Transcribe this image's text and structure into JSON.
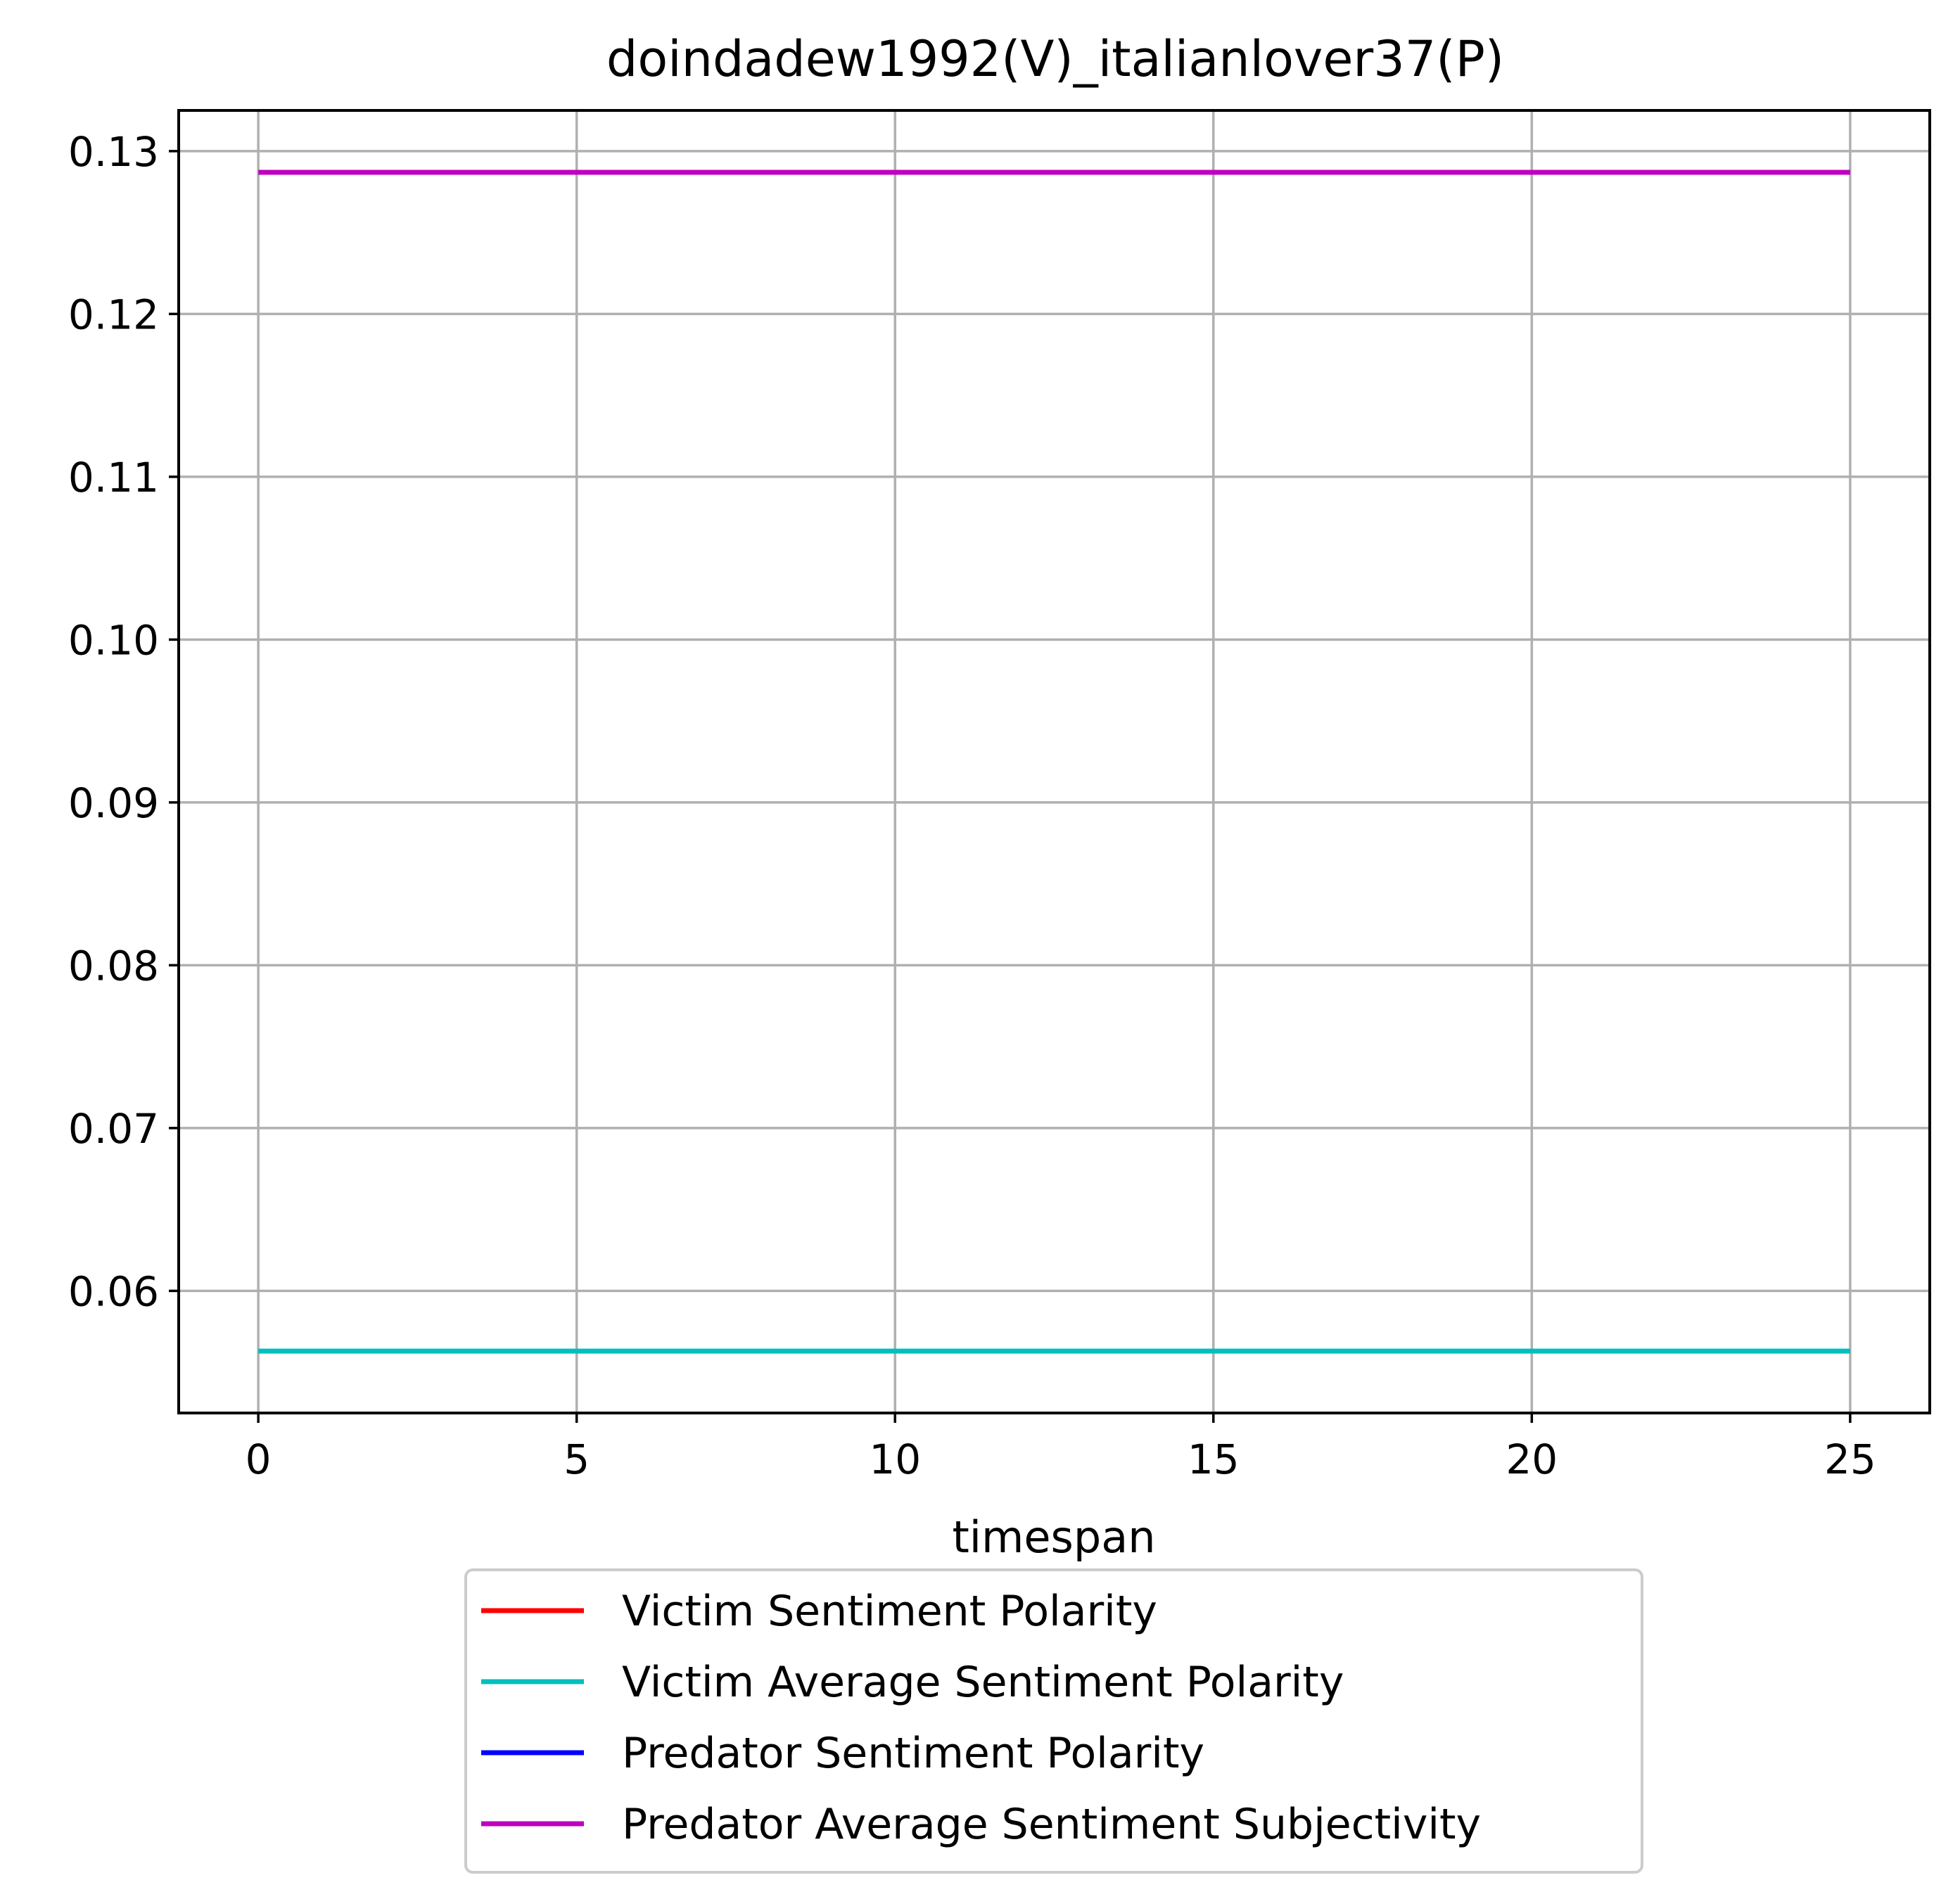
{
  "chart_data": {
    "type": "line",
    "title": "doindadew1992(V)_italianlover37(P)",
    "xlabel": "timespan",
    "ylabel": "",
    "xlim": [
      -1.25,
      26.25
    ],
    "ylim": [
      0.0525,
      0.1325
    ],
    "x_ticks": [
      0,
      5,
      10,
      15,
      20,
      25
    ],
    "x_tick_labels": [
      "0",
      "5",
      "10",
      "15",
      "20",
      "25"
    ],
    "y_ticks": [
      0.06,
      0.07,
      0.08,
      0.09,
      0.1,
      0.11,
      0.12,
      0.13
    ],
    "y_tick_labels": [
      "0.06",
      "0.07",
      "0.08",
      "0.09",
      "0.10",
      "0.11",
      "0.12",
      "0.13"
    ],
    "grid": true,
    "legend_position": "below plot, centered",
    "series": [
      {
        "name": "Victim Sentiment Polarity",
        "color": "#ff0000",
        "x": [],
        "y": []
      },
      {
        "name": "Victim Average Sentiment Polarity",
        "color": "#00bfbf",
        "x": [
          0,
          25
        ],
        "y": [
          0.0563,
          0.0563
        ]
      },
      {
        "name": "Predator Sentiment Polarity",
        "color": "#0000ff",
        "x": [],
        "y": []
      },
      {
        "name": "Predator Average Sentiment Subjectivity",
        "color": "#bf00bf",
        "x": [
          0,
          25
        ],
        "y": [
          0.1287,
          0.1287
        ]
      }
    ]
  }
}
